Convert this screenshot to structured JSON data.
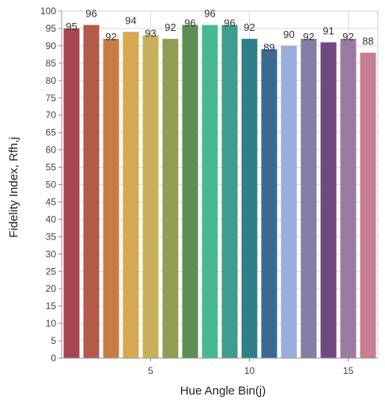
{
  "chart_data": {
    "type": "bar",
    "x": [
      1,
      2,
      3,
      4,
      5,
      6,
      7,
      8,
      9,
      10,
      11,
      12,
      13,
      14,
      15,
      16
    ],
    "values": [
      95,
      96,
      92,
      94,
      93,
      92,
      96,
      96,
      96,
      92,
      89,
      90,
      92,
      91,
      92,
      88
    ],
    "data_labels": [
      "95",
      "96",
      "92",
      "94",
      "93",
      "92",
      "96",
      "96",
      "96",
      "92",
      "89",
      "90",
      "92",
      "91",
      "92",
      "88"
    ],
    "colors": [
      "#a8464f",
      "#b35a4a",
      "#c97b44",
      "#d8a752",
      "#c8b05a",
      "#8f9d55",
      "#5c8e55",
      "#48b892",
      "#3f9d8f",
      "#2f7e8a",
      "#3a6a92",
      "#9aaedb",
      "#837ea6",
      "#6f4a7e",
      "#9c7aa2",
      "#c77f92"
    ],
    "title": "",
    "xlabel": "Hue Angle Bin(j)",
    "ylabel": "Fidelity Index, Rfh,j",
    "ylim": [
      0,
      100
    ],
    "yticks": [
      0,
      5,
      10,
      15,
      20,
      25,
      30,
      35,
      40,
      45,
      50,
      55,
      60,
      65,
      70,
      75,
      80,
      85,
      90,
      95,
      100
    ],
    "ytick_labels": [
      "0",
      "5",
      "10",
      "15",
      "20",
      "25",
      "30",
      "35",
      "40",
      "45",
      "50",
      "55",
      "60",
      "65",
      "70",
      "75",
      "80",
      "85",
      "90",
      "95",
      "100"
    ],
    "xticks": [
      5,
      10,
      15
    ],
    "xtick_labels": [
      "5",
      "10",
      "15"
    ],
    "grid": true,
    "grid_color": "#d9d9d9"
  }
}
